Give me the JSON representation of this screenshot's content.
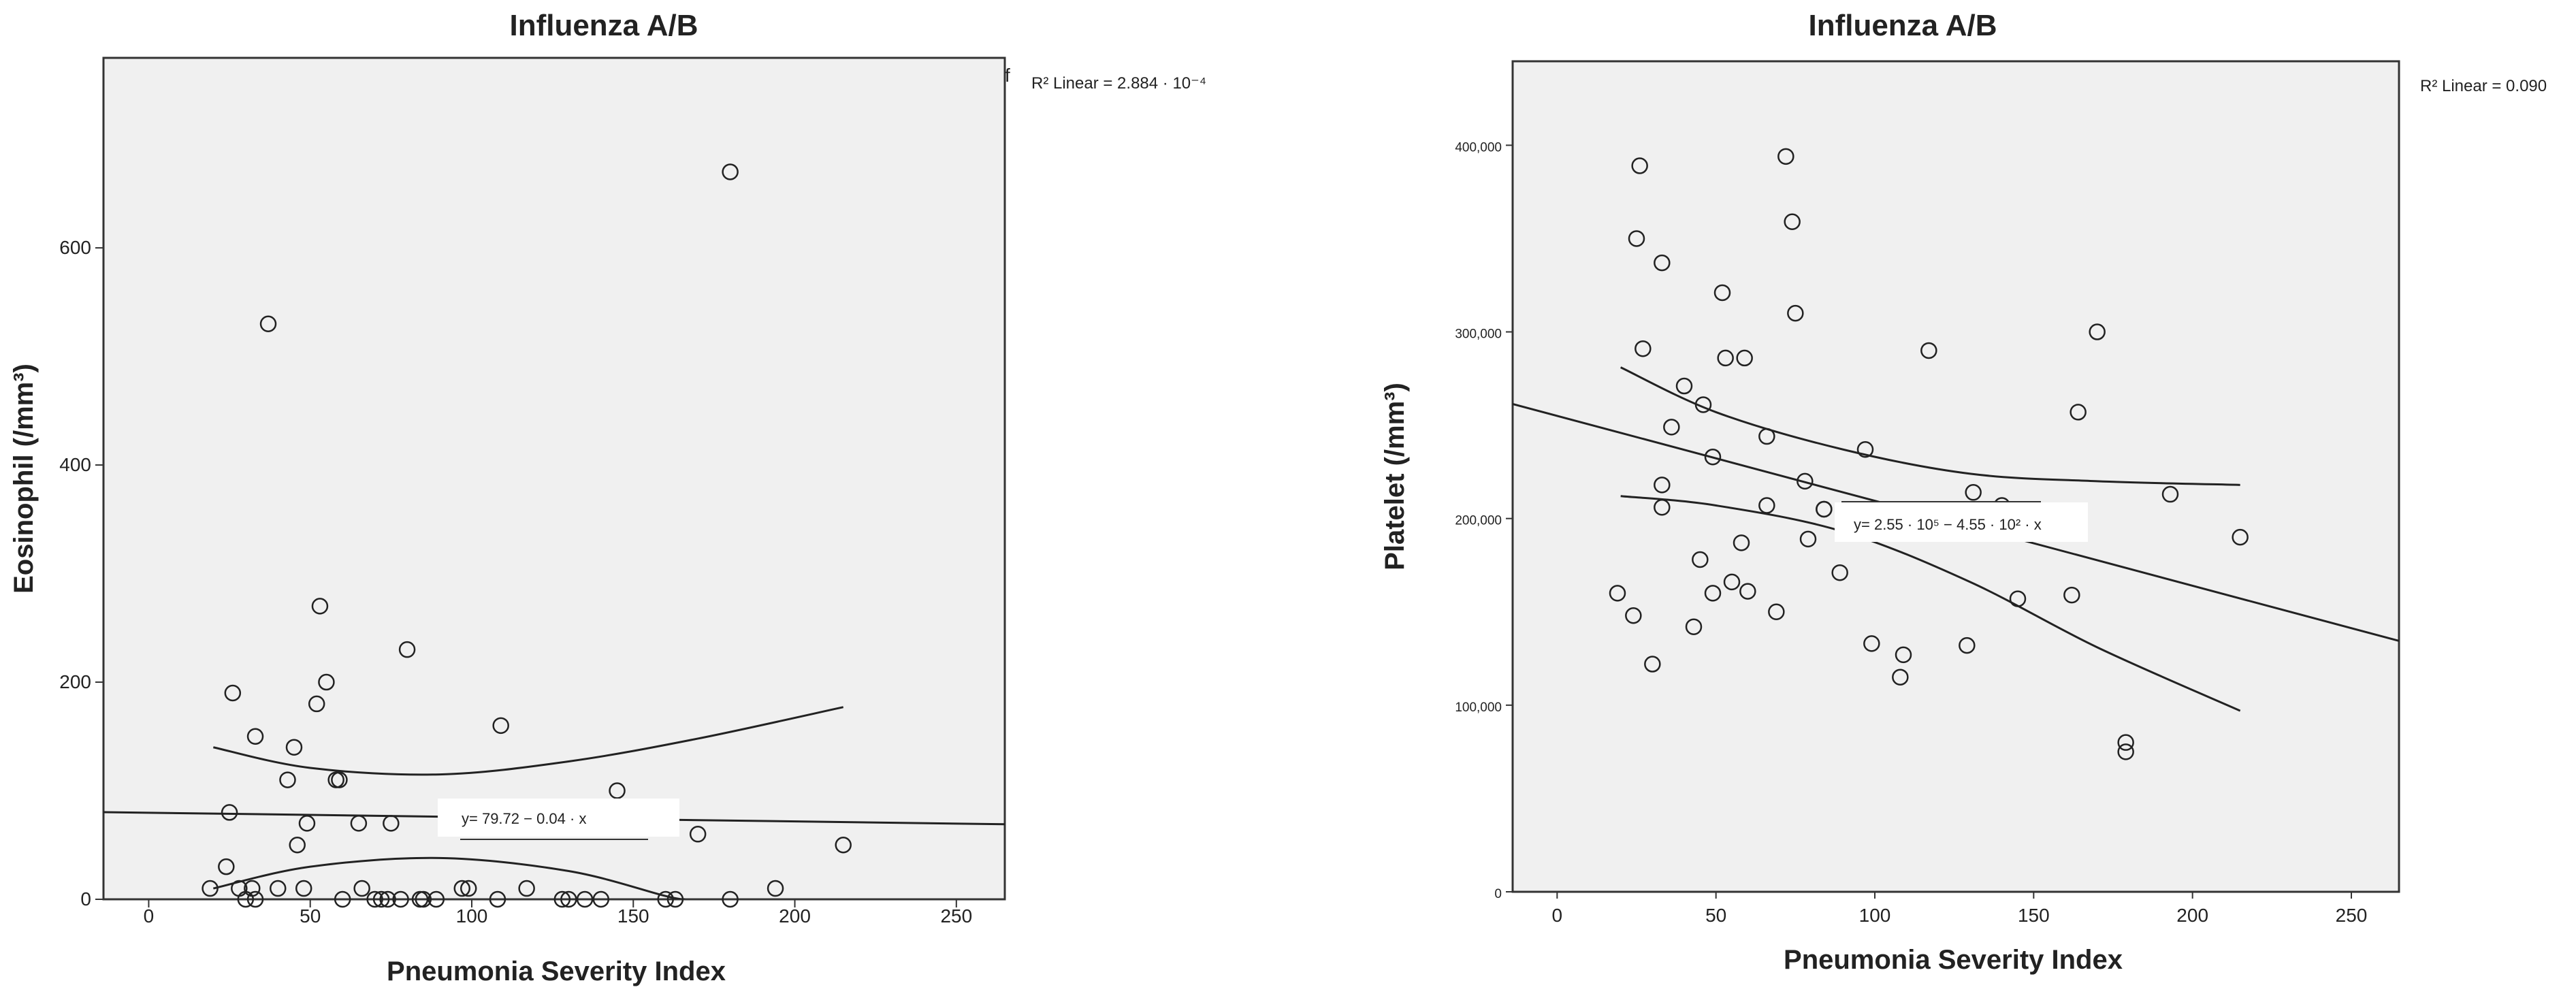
{
  "chart_data": [
    {
      "type": "scatter",
      "title": "Influenza A/B",
      "xlabel": "Pneumonia Severity Index",
      "ylabel": "Eosinophil (/mm³)",
      "xlim": [
        -14,
        265
      ],
      "ylim": [
        0,
        775
      ],
      "xticks": [
        "0",
        "50",
        "100",
        "150",
        "200",
        "250"
      ],
      "yticks": [
        "0",
        "200",
        "400",
        "600"
      ],
      "stray_mark": "f",
      "r2_text": "R² Linear = 2.884 · 10⁻⁴",
      "equation": "y= 79.72 − 0.04 · x",
      "fit": {
        "intercept": 79.72,
        "slope": -0.04
      },
      "ci_upper": [
        [
          20,
          140
        ],
        [
          50,
          121
        ],
        [
          90,
          115
        ],
        [
          130,
          127
        ],
        [
          170,
          148
        ],
        [
          215,
          177
        ]
      ],
      "ci_lower": [
        [
          20,
          10
        ],
        [
          50,
          30
        ],
        [
          90,
          38
        ],
        [
          130,
          26
        ],
        [
          160,
          3
        ],
        [
          166,
          0
        ]
      ],
      "points": [
        [
          19,
          10
        ],
        [
          24,
          30
        ],
        [
          25,
          80
        ],
        [
          26,
          190
        ],
        [
          28,
          10
        ],
        [
          30,
          0
        ],
        [
          32,
          10
        ],
        [
          33,
          150
        ],
        [
          33,
          0
        ],
        [
          37,
          530
        ],
        [
          40,
          10
        ],
        [
          43,
          110
        ],
        [
          45,
          140
        ],
        [
          46,
          50
        ],
        [
          48,
          10
        ],
        [
          49,
          70
        ],
        [
          52,
          180
        ],
        [
          53,
          270
        ],
        [
          55,
          200
        ],
        [
          58,
          110
        ],
        [
          59,
          110
        ],
        [
          60,
          0
        ],
        [
          65,
          70
        ],
        [
          66,
          10
        ],
        [
          70,
          0
        ],
        [
          72,
          0
        ],
        [
          74,
          0
        ],
        [
          75,
          70
        ],
        [
          78,
          0
        ],
        [
          80,
          230
        ],
        [
          84,
          0
        ],
        [
          85,
          0
        ],
        [
          89,
          0
        ],
        [
          97,
          10
        ],
        [
          99,
          10
        ],
        [
          108,
          0
        ],
        [
          109,
          160
        ],
        [
          117,
          10
        ],
        [
          128,
          0
        ],
        [
          130,
          0
        ],
        [
          135,
          0
        ],
        [
          140,
          0
        ],
        [
          145,
          100
        ],
        [
          160,
          0
        ],
        [
          163,
          0
        ],
        [
          170,
          60
        ],
        [
          180,
          0
        ],
        [
          180,
          670
        ],
        [
          194,
          10
        ],
        [
          215,
          50
        ]
      ]
    },
    {
      "type": "scatter",
      "title": "Influenza A/B",
      "xlabel": "Pneumonia Severity Index",
      "ylabel": "Platelet (/mm³)",
      "xlim": [
        -14,
        265
      ],
      "ylim": [
        0,
        445000
      ],
      "xticks": [
        "0",
        "50",
        "100",
        "150",
        "200",
        "250"
      ],
      "yticks": [
        "0",
        "100,000",
        "200,000",
        "300,000",
        "400,000"
      ],
      "r2_text": "R² Linear = 0.090",
      "equation": "y= 2.55 · 10⁵ − 4.55 · 10² · x",
      "fit": {
        "intercept": 255000,
        "slope": -455
      },
      "ci_upper": [
        [
          20,
          281000
        ],
        [
          50,
          257000
        ],
        [
          90,
          237000
        ],
        [
          130,
          224000
        ],
        [
          170,
          220000
        ],
        [
          215,
          218000
        ]
      ],
      "ci_lower": [
        [
          20,
          212000
        ],
        [
          50,
          207000
        ],
        [
          90,
          193000
        ],
        [
          130,
          166000
        ],
        [
          170,
          131000
        ],
        [
          215,
          97000
        ]
      ],
      "points": [
        [
          19,
          160000
        ],
        [
          24,
          148000
        ],
        [
          25,
          350000
        ],
        [
          26,
          389000
        ],
        [
          27,
          291000
        ],
        [
          30,
          122000
        ],
        [
          33,
          337000
        ],
        [
          33,
          218000
        ],
        [
          33,
          206000
        ],
        [
          36,
          249000
        ],
        [
          40,
          271000
        ],
        [
          43,
          142000
        ],
        [
          45,
          178000
        ],
        [
          46,
          261000
        ],
        [
          49,
          233000
        ],
        [
          49,
          160000
        ],
        [
          52,
          321000
        ],
        [
          53,
          286000
        ],
        [
          55,
          166000
        ],
        [
          58,
          187000
        ],
        [
          59,
          286000
        ],
        [
          60,
          161000
        ],
        [
          66,
          244000
        ],
        [
          66,
          207000
        ],
        [
          69,
          150000
        ],
        [
          72,
          394000
        ],
        [
          74,
          359000
        ],
        [
          75,
          310000
        ],
        [
          78,
          220000
        ],
        [
          79,
          189000
        ],
        [
          84,
          205000
        ],
        [
          84,
          205000
        ],
        [
          89,
          171000
        ],
        [
          97,
          237000
        ],
        [
          99,
          133000
        ],
        [
          108,
          115000
        ],
        [
          109,
          127000
        ],
        [
          117,
          290000
        ],
        [
          129,
          132000
        ],
        [
          131,
          214000
        ],
        [
          140,
          207000
        ],
        [
          145,
          157000
        ],
        [
          162,
          159000
        ],
        [
          164,
          257000
        ],
        [
          170,
          300000
        ],
        [
          179,
          80000
        ],
        [
          179,
          75000
        ],
        [
          193,
          213000
        ],
        [
          215,
          190000
        ]
      ]
    }
  ]
}
